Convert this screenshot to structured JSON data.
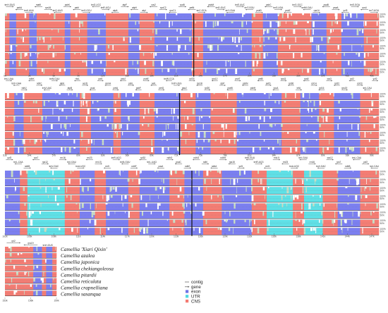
{
  "species": [
    "Camellia 'Xiari Qixin'",
    "Camellia azalea",
    "Camellia japonica",
    "Camellia chekiangoleosa",
    "Camellia pitardii",
    "Camellia reticulata",
    "Camellia crapnelliana",
    "Camellia sasanqua"
  ],
  "legend": [
    {
      "label": "contig",
      "kind": "line",
      "color": "#555555"
    },
    {
      "label": "gene",
      "kind": "arrow",
      "color": "#555555"
    },
    {
      "label": "exon",
      "kind": "box",
      "color": "#6f74e6"
    },
    {
      "label": "UTR",
      "kind": "box",
      "color": "#50d9e0"
    },
    {
      "label": "CNS",
      "kind": "box",
      "color": "#f47a72"
    }
  ],
  "colors": {
    "exon": "#7b7ff0",
    "cns": "#f47d74",
    "utr": "#5fe0e6",
    "gap": "#c8ddc4",
    "grid": "#333333"
  },
  "percent_labels": [
    "100%",
    "50%"
  ],
  "panels": [
    {
      "ticks": [
        "0k",
        "3k",
        "6k",
        "9k",
        "12k",
        "15k",
        "18k",
        "21k",
        "24k",
        "27k",
        "30k",
        "33k",
        "36k",
        "39k",
        "42k",
        "45k"
      ],
      "genes": [
        "trnH-GUG",
        "psbA",
        "trnK-UUU",
        "matK",
        "rps16",
        "trnQ-UUG",
        "psbK",
        "psbI",
        "trnS-GCU",
        "trnG-UCC",
        "trnR-UCU",
        "atpA",
        "atpF",
        "atpH",
        "atpI",
        "rps2",
        "rpoC2",
        "rpoC1",
        "rpoB",
        "petN",
        "trnC-GCA",
        "psbM",
        "trnD-GUC",
        "trnY-GUA",
        "trnE-UUC",
        "trnT-GGU",
        "psbD",
        "psbC",
        "trnS-UGA",
        "psbZ",
        "trnG-GCC",
        "trnfM-CAU",
        "rps14",
        "psaB",
        "psaA",
        "ycf3",
        "trnS-GGA",
        "rps4",
        "trnT-UGU"
      ]
    },
    {
      "ticks": [
        "51k",
        "54k",
        "57k",
        "60k",
        "63k",
        "66k",
        "69k",
        "72k",
        "75k",
        "78k",
        "81k",
        "84k",
        "87k",
        "90k",
        "93k",
        "96k"
      ],
      "genes": [
        "trnL-UAA",
        "trnF-GAA",
        "ndhJ",
        "ndhK",
        "ndhC",
        "trnV-UAC",
        "trnM-CAU",
        "atpE",
        "atpB",
        "rbcL",
        "accD",
        "psaI",
        "ycf4",
        "cemA",
        "petA",
        "psbJ",
        "psbL",
        "psbF",
        "psbE",
        "petL",
        "petG",
        "trnW-CCA",
        "trnP-UGG",
        "psaJ",
        "rpl33",
        "rps18",
        "rpl20",
        "rps12",
        "clpP",
        "psbB",
        "psbT",
        "psbN",
        "psbH",
        "petB",
        "petD",
        "rpoA",
        "rps11",
        "rpl36",
        "infA",
        "rps8",
        "rpl14",
        "rpl16",
        "rps3",
        "rpl22",
        "rps19",
        "rpl2",
        "rpl23",
        "trnI-CAU",
        "ycf2"
      ]
    },
    {
      "ticks": [
        "102k",
        "105k",
        "108k",
        "111k",
        "114k",
        "117k",
        "120k",
        "123k",
        "126k",
        "129k",
        "132k",
        "135k",
        "138k",
        "141k",
        "144k",
        "147k"
      ],
      "genes": [
        "ycf2",
        "trnL-CAA",
        "ndhB",
        "rps7",
        "rps12",
        "trnV-GAC",
        "rrn16",
        "trnI-GAU",
        "trnA-UGC",
        "rrn23",
        "rrn4.5",
        "rrn5",
        "trnR-ACG",
        "trnN-GUU",
        "ndhF",
        "rpl32",
        "trnL-UAG",
        "ccsA",
        "ndhD",
        "psaC",
        "ndhE",
        "ndhG",
        "ndhI",
        "ndhA",
        "ndhH",
        "rps15",
        "ycf1",
        "trnN-GUU",
        "trnR-ACG",
        "rrn5",
        "rrn4.5",
        "rrn23",
        "trnA-UGC",
        "trnI-GAU",
        "rrn16",
        "trnV-GAC",
        "rps12",
        "rps7",
        "ndhB",
        "trnL-CAA",
        "ycf2",
        "trnI-CAU"
      ]
    },
    {
      "ticks": [
        "153k",
        "156k",
        "159k"
      ],
      "genes": [
        "rpl2",
        "rps19",
        "trnH-GUG"
      ]
    }
  ]
}
